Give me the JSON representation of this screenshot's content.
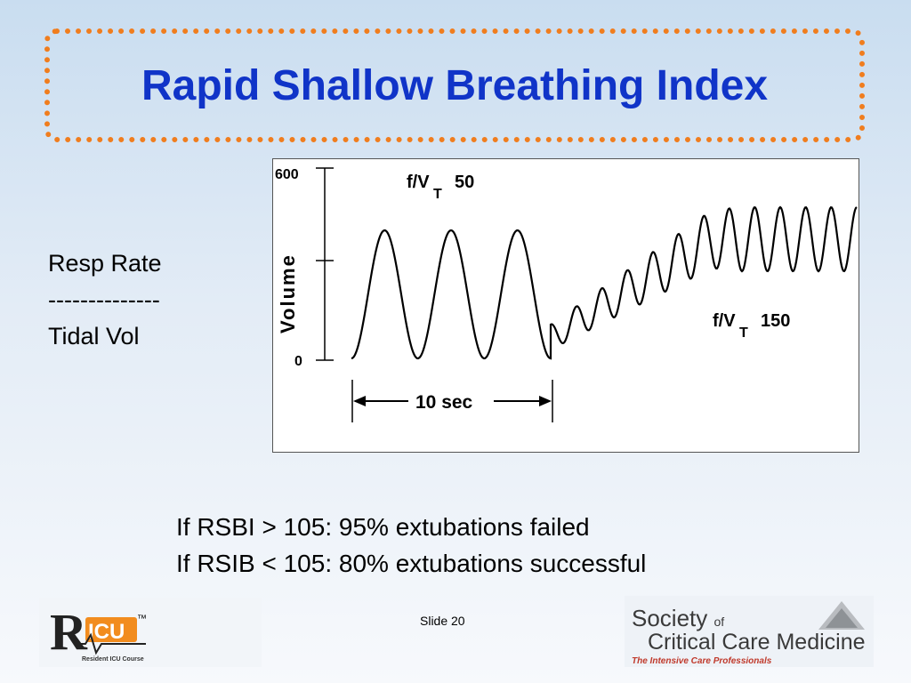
{
  "title": "Rapid Shallow Breathing Index",
  "ratio": {
    "numerator": "Resp Rate",
    "divider": "--------------",
    "denominator": "Tidal Vol"
  },
  "figure": {
    "y_axis_label": "Volume",
    "y_tick_top": "600",
    "y_tick_bottom": "0",
    "label_slow": "f/V",
    "label_slow_sub": "T",
    "label_slow_value": "50",
    "label_fast": "f/V",
    "label_fast_sub": "T",
    "label_fast_value": "150",
    "time_label": "10  sec"
  },
  "notes": {
    "line1": "If RSBI > 105:  95% extubations failed",
    "line2": "If RSIB < 105:  80% extubations successful"
  },
  "footer": {
    "tm": "™",
    "ricu_tagline": "Resident ICU Course",
    "slide_number": "Slide 20",
    "sccm_line1_a": "Society",
    "sccm_line1_b": "of",
    "sccm_line2": "Critical Care Medicine",
    "sccm_line3": "The Intensive Care Professionals"
  },
  "colors": {
    "title": "#1034c8",
    "border_dots": "#f07d1e",
    "ricu_orange": "#f28c1e",
    "sccm_red": "#c0392b"
  }
}
